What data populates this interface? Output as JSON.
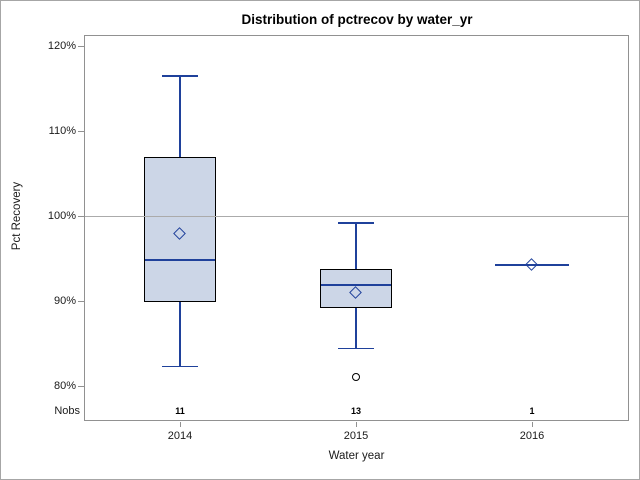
{
  "figure": {
    "title": "Distribution of pctrecov by water_yr",
    "background": "#ffffff",
    "border_color": "#a6a6a6"
  },
  "chart_data": {
    "type": "boxplot",
    "title": "Distribution of pctrecov by water_yr",
    "xlabel": "Water year",
    "ylabel": "Pct Recovery",
    "nobs_row_label": "Nobs",
    "categories": [
      "2014",
      "2015",
      "2016"
    ],
    "nobs": [
      "11",
      "13",
      "1"
    ],
    "ylim": [
      76,
      121.4
    ],
    "yticks": {
      "values": [
        120,
        110,
        100,
        90,
        80
      ],
      "labels": [
        "120%",
        "110%",
        "100%",
        "90%",
        "80%"
      ]
    },
    "reference_line_y": 100,
    "grid": false,
    "legend_position": "none",
    "boxes": [
      {
        "category": "2014",
        "nobs": 11,
        "whisker_high": 116.6,
        "q3": 107.0,
        "mean": 98.0,
        "median": 94.9,
        "q1": 90.0,
        "whisker_low": 82.4,
        "outliers": []
      },
      {
        "category": "2015",
        "nobs": 13,
        "whisker_high": 99.3,
        "q3": 93.9,
        "mean": 91.1,
        "median": 92.0,
        "q1": 89.3,
        "whisker_low": 84.5,
        "outliers": [
          81.2
        ]
      },
      {
        "category": "2016",
        "nobs": 1,
        "whisker_high": 94.3,
        "q3": 94.3,
        "mean": 94.3,
        "median": 94.3,
        "q1": 94.3,
        "whisker_low": 94.3,
        "outliers": []
      }
    ],
    "colors": {
      "box_fill": "#ccd6e7",
      "box_border": "#000000",
      "line_blue": "#1f419b",
      "frame_gray": "#919191",
      "reference_line_gray": "#ababab",
      "text": "#000000"
    }
  }
}
